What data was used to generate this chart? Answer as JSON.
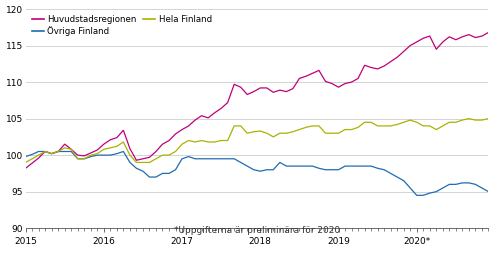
{
  "footnote": "*Uppgifterna är preliminära för 2020",
  "legend": [
    {
      "label": "Huvudstadsregionen",
      "color": "#c0007a"
    },
    {
      "label": "Övriga Finland",
      "color": "#1f6cb0"
    },
    {
      "label": "Hela Finland",
      "color": "#a8b400"
    }
  ],
  "ylim": [
    90,
    120
  ],
  "yticks": [
    90,
    95,
    100,
    105,
    110,
    115,
    120
  ],
  "grid_color": "#cccccc",
  "Huvudstadsregionen": [
    98.2,
    98.9,
    99.6,
    100.5,
    100.2,
    100.5,
    101.5,
    100.8,
    100.0,
    99.9,
    100.3,
    100.7,
    101.5,
    102.1,
    102.4,
    103.4,
    100.9,
    99.3,
    99.5,
    99.7,
    100.5,
    101.5,
    102.0,
    102.9,
    103.5,
    104.0,
    104.8,
    105.4,
    105.1,
    105.8,
    106.4,
    107.2,
    109.7,
    109.3,
    108.3,
    108.7,
    109.2,
    109.2,
    108.6,
    108.9,
    108.7,
    109.1,
    110.5,
    110.8,
    111.2,
    111.6,
    110.1,
    109.8,
    109.3,
    109.8,
    110.0,
    110.5,
    112.3,
    112.0,
    111.8,
    112.2,
    112.8,
    113.4,
    114.2,
    115.0,
    115.5,
    116.0,
    116.3,
    114.5,
    115.5,
    116.2,
    115.8,
    116.2,
    116.5,
    116.1,
    116.3,
    116.8
  ],
  "Ovriga_Finland": [
    99.8,
    100.1,
    100.5,
    100.5,
    100.2,
    100.5,
    100.5,
    100.5,
    99.5,
    99.5,
    99.8,
    100.0,
    100.0,
    100.0,
    100.2,
    100.5,
    99.0,
    98.2,
    97.8,
    97.0,
    97.0,
    97.5,
    97.5,
    98.0,
    99.5,
    99.8,
    99.5,
    99.5,
    99.5,
    99.5,
    99.5,
    99.5,
    99.5,
    99.0,
    98.5,
    98.0,
    97.8,
    98.0,
    98.0,
    99.0,
    98.5,
    98.5,
    98.5,
    98.5,
    98.5,
    98.2,
    98.0,
    98.0,
    98.0,
    98.5,
    98.5,
    98.5,
    98.5,
    98.5,
    98.2,
    98.0,
    97.5,
    97.0,
    96.5,
    95.5,
    94.5,
    94.5,
    94.8,
    95.0,
    95.5,
    96.0,
    96.0,
    96.2,
    96.2,
    96.0,
    95.5,
    95.0
  ],
  "Hela_Finland": [
    99.0,
    99.5,
    100.0,
    100.5,
    100.2,
    100.5,
    101.0,
    100.8,
    99.5,
    99.5,
    100.0,
    100.2,
    100.8,
    101.0,
    101.2,
    101.8,
    100.0,
    99.0,
    99.0,
    99.0,
    99.5,
    100.0,
    100.0,
    100.5,
    101.5,
    102.0,
    101.8,
    102.0,
    101.8,
    101.8,
    102.0,
    102.0,
    104.0,
    104.0,
    103.0,
    103.2,
    103.3,
    103.0,
    102.5,
    103.0,
    103.0,
    103.2,
    103.5,
    103.8,
    104.0,
    104.0,
    103.0,
    103.0,
    103.0,
    103.5,
    103.5,
    103.8,
    104.5,
    104.5,
    104.0,
    104.0,
    104.0,
    104.2,
    104.5,
    104.8,
    104.5,
    104.0,
    104.0,
    103.5,
    104.0,
    104.5,
    104.5,
    104.8,
    105.0,
    104.8,
    104.8,
    105.0
  ]
}
